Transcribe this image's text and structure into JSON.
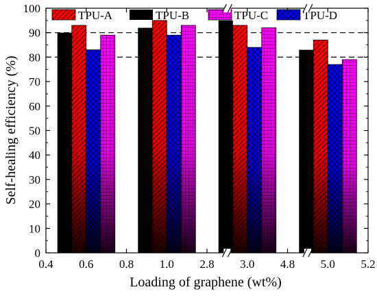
{
  "chart_data": {
    "type": "bar",
    "xlabel": "Loading of graphene  (wt%)",
    "ylabel": "Self-healing efficiency (%)",
    "ylim": [
      0,
      100
    ],
    "yticks": [
      "0",
      "10",
      "20",
      "30",
      "40",
      "50",
      "60",
      "70",
      "80",
      "90",
      "100"
    ],
    "xticks": [
      "0.4",
      "0.6",
      "0.8",
      "1.0",
      "2.8",
      "3.0",
      "4.8",
      "5.0",
      "5.2"
    ],
    "axis_breaks_after": [
      "2.8",
      "4.8"
    ],
    "categories": [
      "0.6",
      "1.0",
      "3.0",
      "5.0"
    ],
    "series": [
      {
        "name": "TPU-A",
        "values": [
          93,
          95,
          93,
          87
        ],
        "color": "#ff0000",
        "pattern": "diagonal-hatch"
      },
      {
        "name": "TPU-B",
        "values": [
          90,
          92,
          95,
          83
        ],
        "color": "#000000",
        "pattern": "solid"
      },
      {
        "name": "TPU-C",
        "values": [
          89,
          93,
          92,
          79
        ],
        "color": "#ff00ff",
        "pattern": "grid"
      },
      {
        "name": "TPU-D",
        "values": [
          83,
          89,
          84,
          77
        ],
        "color": "#0000ff",
        "pattern": "crosshatch"
      }
    ],
    "series_draw_order": [
      "TPU-B",
      "TPU-A",
      "TPU-D",
      "TPU-C"
    ],
    "reference_lines": [
      90,
      80
    ],
    "legend_position": "top",
    "grid": false
  }
}
